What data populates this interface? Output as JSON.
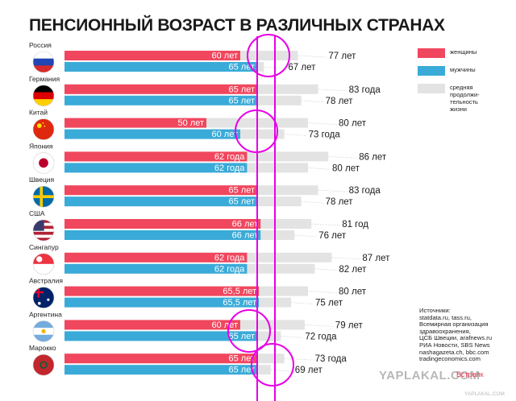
{
  "title": "ПЕНСИОННЫЙ ВОЗРАСТ В РАЗЛИЧНЫХ СТРАНАХ",
  "colors": {
    "women": "#f0475e",
    "men": "#3aabd8",
    "life_expectancy": "#e3e3e3",
    "annotation": "#e600e6"
  },
  "legend": {
    "women": "женщины",
    "men": "мужчины",
    "life_expectancy": "средняя продолжи-тельность жизни"
  },
  "sources": [
    "Источники:",
    "statdata.ru, tass.ru,",
    "Всемирная организация",
    "здравоохранения,",
    "ЦСБ Швеции, arafnews.ru",
    "РИА Новости, SBS News",
    "nashagazeta.ch, bbc.com",
    "tradingeconomics.com"
  ],
  "watermark": {
    "main": "YAPLAKAL.COM",
    "sub": "YAPLAKAL.COM",
    "stamp": "Встрелк"
  },
  "chart_data": {
    "type": "bar",
    "categories": [
      "Россия",
      "Германия",
      "Китай",
      "Япония",
      "Швеция",
      "США",
      "Сингапур",
      "Австралия",
      "Аргентина",
      "Марокко"
    ],
    "series": [
      {
        "key": "women",
        "name": "женщины",
        "values": [
          60,
          65,
          50,
          62,
          65,
          66,
          62,
          65.5,
          60,
          65
        ],
        "labels": [
          "60 лет",
          "65 лет",
          "50 лет",
          "62 года",
          "65 лет",
          "66 лет",
          "62 года",
          "65,5 лет",
          "60 лет",
          "65 лет"
        ]
      },
      {
        "key": "men",
        "name": "мужчины",
        "values": [
          65,
          65,
          60,
          62,
          65,
          66,
          62,
          65.5,
          65,
          65
        ],
        "labels": [
          "65 лет",
          "65 лет",
          "60 лет",
          "62 года",
          "65 лет",
          "66 лет",
          "62 года",
          "65,5 лет",
          "65 лет",
          "65 лет"
        ]
      }
    ],
    "life_expectancy": {
      "name": "средняя продолжи-тельность жизни",
      "women": [
        77,
        83,
        80,
        86,
        83,
        81,
        87,
        80,
        79,
        73
      ],
      "men": [
        67,
        78,
        73,
        80,
        78,
        76,
        82,
        75,
        72,
        69
      ],
      "women_labels": [
        "77 лет",
        "83 года",
        "80 лет",
        "86 лет",
        "83 года",
        "81 год",
        "87 лет",
        "80 лет",
        "79 лет",
        "73 года"
      ],
      "men_labels": [
        "67 лет",
        "78 лет",
        "73 года",
        "80 лет",
        "78 лет",
        "76 лет",
        "82 лет",
        "75 лет",
        "72 года",
        "69 лет"
      ]
    },
    "flag_colors": {
      "Россия": [
        "#ffffff",
        "#1f46b4",
        "#d62b2b"
      ],
      "Германия": [
        "#000000",
        "#dd0000",
        "#ffce00"
      ],
      "Китай": [
        "#de2910",
        "#ffde00"
      ],
      "Япония": [
        "#ffffff",
        "#bc002d"
      ],
      "Швеция": [
        "#006aa7",
        "#fecc00"
      ],
      "США": [
        "#b22234",
        "#ffffff",
        "#3c3b6e"
      ],
      "Сингапур": [
        "#ef3340",
        "#ffffff"
      ],
      "Австралия": [
        "#012169",
        "#ffffff",
        "#e4002b"
      ],
      "Аргентина": [
        "#74acdf",
        "#ffffff",
        "#f6b40e"
      ],
      "Марокко": [
        "#c1272d",
        "#006233"
      ]
    },
    "xlabel": "",
    "ylabel": "",
    "grid": false,
    "legend_position": "right"
  }
}
